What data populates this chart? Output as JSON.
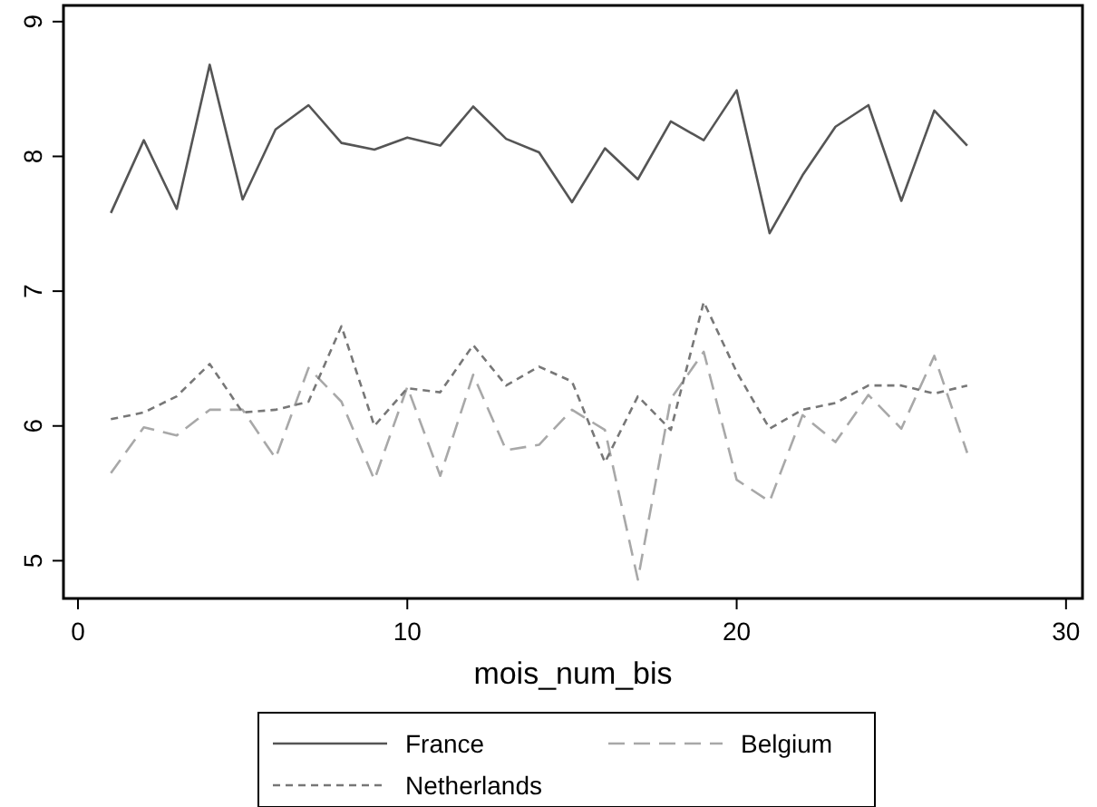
{
  "chart_data": {
    "type": "line",
    "xlabel": "mois_num_bis",
    "x": [
      1,
      2,
      3,
      4,
      5,
      6,
      7,
      8,
      9,
      10,
      11,
      12,
      13,
      14,
      15,
      16,
      17,
      18,
      19,
      20,
      21,
      22,
      23,
      24,
      25,
      26,
      27
    ],
    "series": [
      {
        "name": "France",
        "color": "#555555",
        "line_style": "solid",
        "values": [
          7.58,
          8.12,
          7.61,
          8.68,
          7.68,
          8.2,
          8.38,
          8.1,
          8.05,
          8.14,
          8.08,
          8.37,
          8.13,
          8.03,
          7.66,
          8.06,
          7.83,
          8.26,
          8.12,
          8.49,
          7.43,
          7.86,
          8.22,
          8.38,
          7.67,
          8.34,
          8.08
        ]
      },
      {
        "name": "Belgium",
        "color": "#a8a8a8",
        "line_style": "dashed",
        "values": [
          5.65,
          5.99,
          5.93,
          6.12,
          6.12,
          5.76,
          6.43,
          6.18,
          5.6,
          6.29,
          5.63,
          6.38,
          5.82,
          5.86,
          6.12,
          5.97,
          4.86,
          6.2,
          6.55,
          5.6,
          5.44,
          6.08,
          5.88,
          6.23,
          5.98,
          6.52,
          5.8
        ]
      },
      {
        "name": "Netherlands",
        "color": "#777777",
        "line_style": "dotted",
        "values": [
          6.05,
          6.1,
          6.22,
          6.46,
          6.1,
          6.12,
          6.18,
          6.74,
          6.0,
          6.28,
          6.25,
          6.6,
          6.3,
          6.44,
          6.33,
          5.73,
          6.22,
          5.97,
          6.92,
          6.4,
          5.98,
          6.12,
          6.17,
          6.3,
          6.3,
          6.24,
          6.3
        ]
      }
    ],
    "xlim": [
      -0.44,
      30.5
    ],
    "xticks": [
      0,
      10,
      20,
      30
    ],
    "ylim": [
      4.72,
      9.12
    ],
    "yticks": [
      5,
      6,
      7,
      8,
      9
    ],
    "grid": false,
    "legend": "bottom",
    "marker": "none"
  }
}
